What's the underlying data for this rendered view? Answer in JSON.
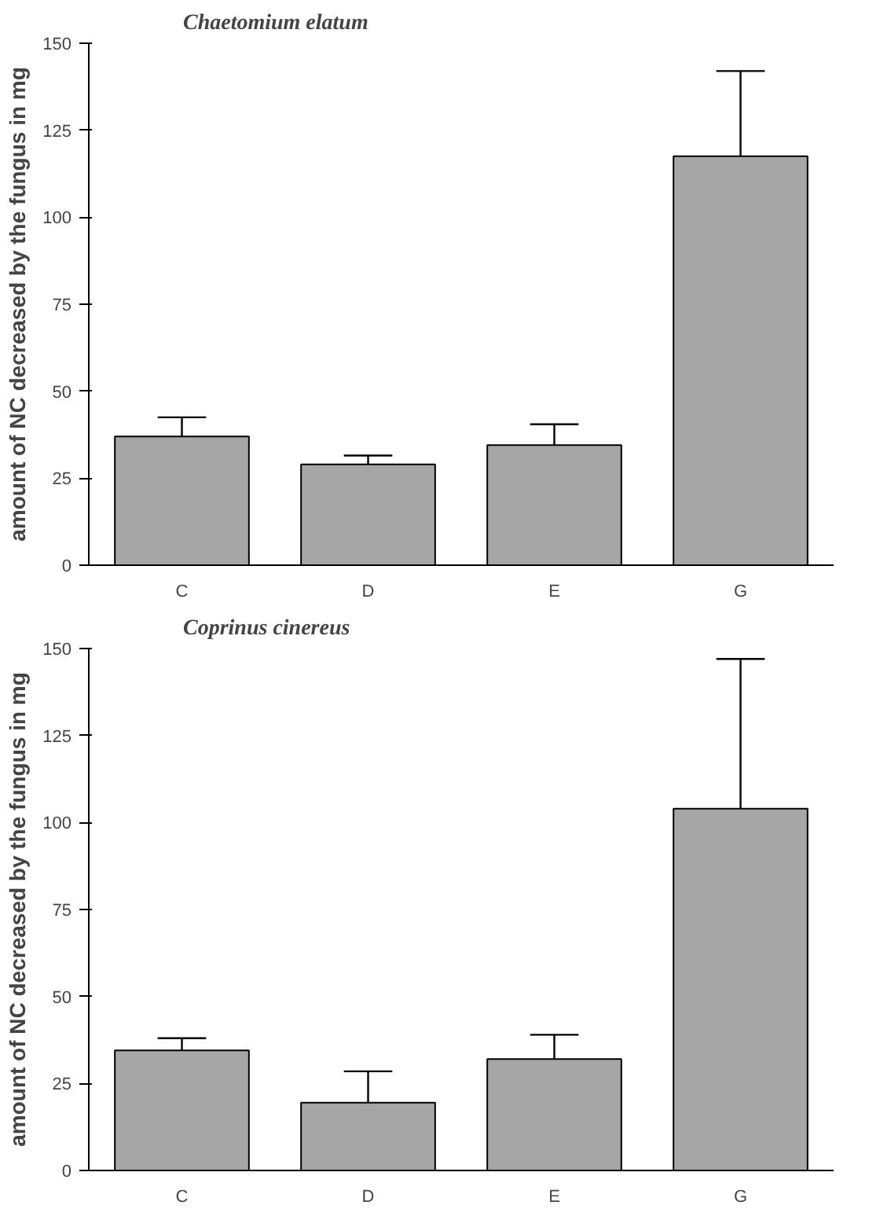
{
  "chart_data": [
    {
      "type": "bar",
      "title": "Chaetomium elatum",
      "ylabel": "amount of NC decreased by the fungus in mg",
      "categories": [
        "C",
        "D",
        "E",
        "G"
      ],
      "values": [
        37,
        29,
        34.5,
        117.5
      ],
      "errors": [
        [
          37,
          42.5
        ],
        [
          29,
          31.5
        ],
        [
          34.5,
          40.5
        ],
        [
          117.5,
          142
        ]
      ],
      "color": "#a6a6a6",
      "ylim": [
        0,
        150
      ],
      "yticks": [
        0,
        25,
        50,
        75,
        100,
        125,
        150
      ]
    },
    {
      "type": "bar",
      "title": "Coprinus cinereus",
      "ylabel": "amount of NC decreased by the fungus in mg",
      "categories": [
        "C",
        "D",
        "E",
        "G"
      ],
      "values": [
        34.5,
        19.5,
        32,
        104
      ],
      "errors": [
        [
          34.5,
          38
        ],
        [
          19.5,
          28.5
        ],
        [
          32,
          39
        ],
        [
          104,
          147
        ]
      ],
      "color": "#a6a6a6",
      "ylim": [
        0,
        150
      ],
      "yticks": [
        0,
        25,
        50,
        75,
        100,
        125,
        150
      ]
    }
  ]
}
